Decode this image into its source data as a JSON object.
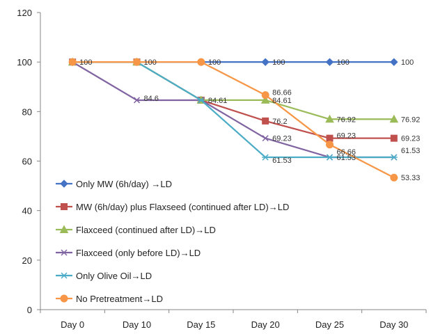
{
  "chart_data": {
    "type": "line",
    "categories": [
      "Day 0",
      "Day 10",
      "Day 15",
      "Day 20",
      "Day 25",
      "Day 30"
    ],
    "ylim": [
      0,
      120
    ],
    "yticks": [
      0,
      20,
      40,
      60,
      80,
      100,
      120
    ],
    "grid": false,
    "legend_position": "left-bottom inside",
    "series": [
      {
        "name": "Only MW (6h/day) →LD",
        "color": "#4472C4",
        "marker": "diamond",
        "values": [
          100,
          100,
          100,
          100,
          100,
          100
        ],
        "labels": [
          "100",
          "100",
          "100",
          "100",
          "100",
          "100"
        ]
      },
      {
        "name": "MW (6h/day) plus Flaxseed (continued after LD)→LD",
        "color": "#C0504D",
        "marker": "square",
        "values": [
          100,
          100,
          84.61,
          76.2,
          69.23,
          69.23
        ],
        "labels": [
          "",
          "",
          "",
          "76.2",
          "69.23",
          "69.23"
        ]
      },
      {
        "name": "Flaxceed (continued after LD)→LD",
        "color": "#9BBB59",
        "marker": "triangle",
        "values": [
          100,
          100,
          84.61,
          84.61,
          76.92,
          76.92
        ],
        "labels": [
          "",
          "",
          "84.61",
          "84.61",
          "76.92",
          "76.92"
        ]
      },
      {
        "name": "Flaxceed (only before LD)→LD",
        "color": "#8064A2",
        "marker": "x",
        "values": [
          100,
          84.6,
          84.61,
          69.23,
          61.53,
          61.53
        ],
        "labels": [
          "",
          "84.6",
          "",
          "69.23",
          "",
          ""
        ]
      },
      {
        "name": "Only Olive Oil→LD",
        "color": "#4BACC6",
        "marker": "star",
        "values": [
          100,
          100,
          84.61,
          61.53,
          61.53,
          61.53
        ],
        "labels": [
          "",
          "",
          "",
          "61.53",
          "61.53",
          "61.53"
        ]
      },
      {
        "name": "No Pretreatment→LD",
        "color": "#F79646",
        "marker": "circle",
        "values": [
          100,
          100,
          100,
          86.66,
          66.66,
          53.33
        ],
        "labels": [
          "",
          "",
          "",
          "86.66",
          "66.66",
          "53.33"
        ]
      }
    ]
  }
}
